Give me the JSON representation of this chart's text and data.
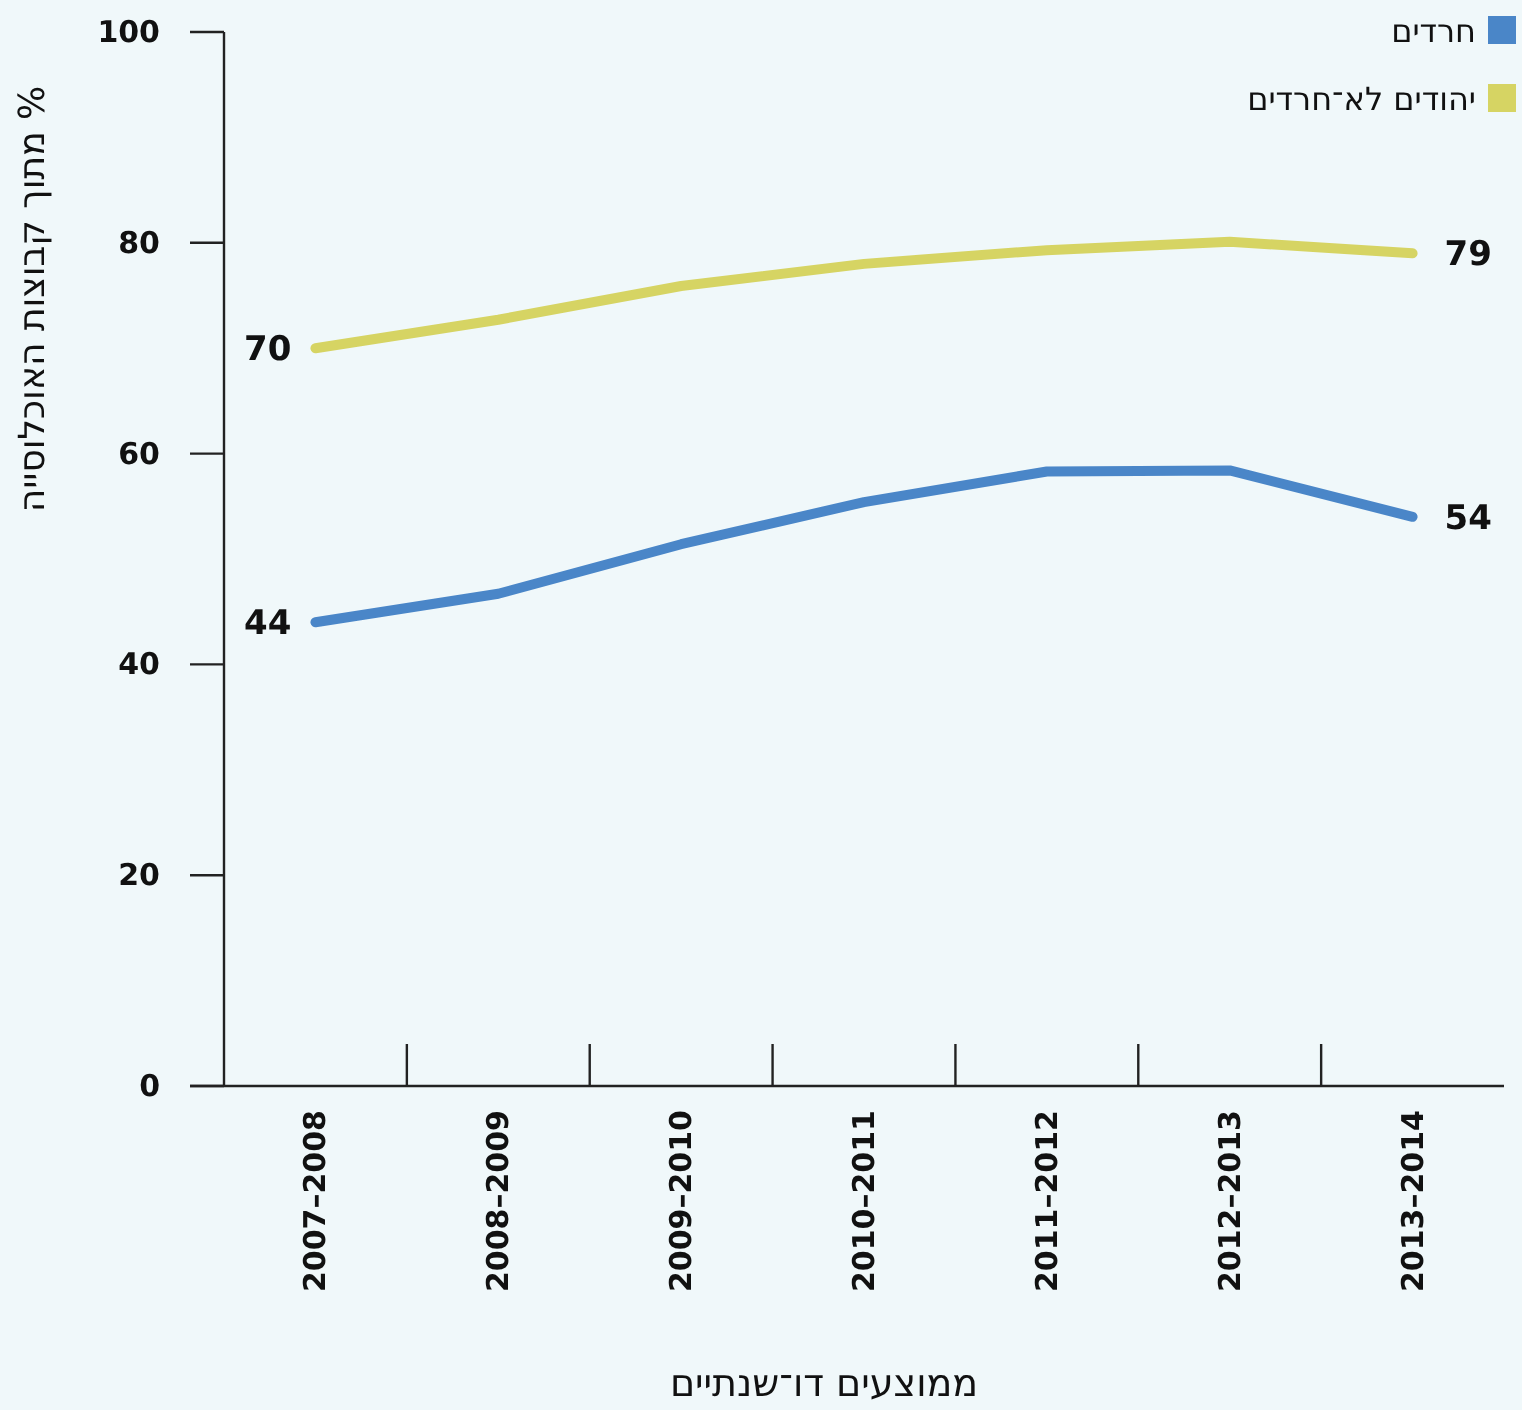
{
  "chart_data": {
    "type": "line",
    "xlabel": "ממוצעים דו־שנתיים",
    "ylabel": "% מתוך קבוצות האוכלוסייה",
    "categories": [
      "2007–2008",
      "2008–2009",
      "2009–2010",
      "2010–2011",
      "2011–2012",
      "2012–2013",
      "2013–2014"
    ],
    "series": [
      {
        "name": "חרדים",
        "color": "#4a86c8",
        "values": [
          44,
          46.7,
          51.4,
          55.4,
          58.3,
          58.4,
          54
        ],
        "value_labels": [
          "44",
          null,
          null,
          null,
          null,
          null,
          "54"
        ]
      },
      {
        "name": "יהודים לא־חרדים",
        "color": "#d6d463",
        "values": [
          70,
          72.7,
          75.9,
          78.0,
          79.3,
          80.1,
          79
        ],
        "value_labels": [
          "70",
          null,
          null,
          null,
          null,
          null,
          "79"
        ]
      }
    ],
    "ylim": [
      0,
      100
    ],
    "yticks": [
      0,
      20,
      40,
      60,
      80,
      100
    ],
    "grid": false,
    "legend": "top right",
    "marker": "none",
    "line_style": "solid"
  }
}
